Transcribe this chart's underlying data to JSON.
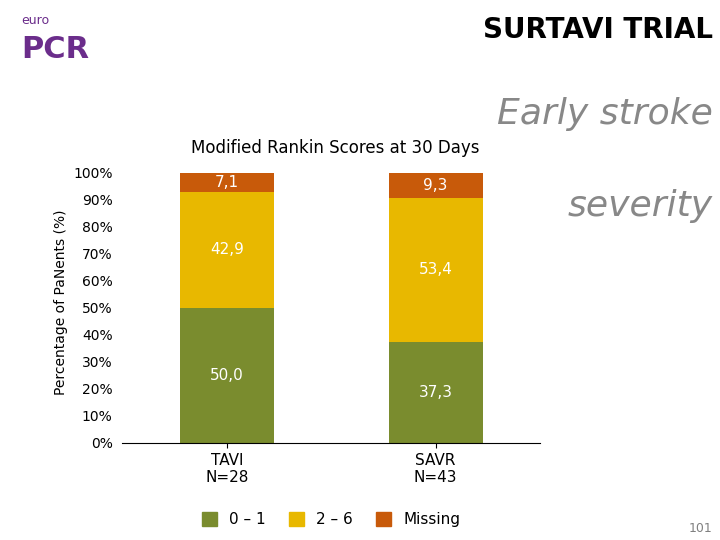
{
  "categories": [
    "TAVI\nN=28",
    "SAVR\nN=43"
  ],
  "bar_0_1": [
    50.0,
    37.3
  ],
  "bar_2_6": [
    42.9,
    53.4
  ],
  "bar_missing": [
    7.1,
    9.3
  ],
  "bar_labels_0_1": [
    "50,0",
    "37,3"
  ],
  "bar_labels_2_6": [
    "42,9",
    "53,4"
  ],
  "bar_labels_missing": [
    "7,1",
    "9,3"
  ],
  "color_0_1": "#7a8c2e",
  "color_2_6": "#e8b800",
  "color_missing": "#c85a0a",
  "title_line1": "SURTAVI TRIAL",
  "title_line2": "Early stroke",
  "title_line3": "severity",
  "subtitle": "Modified Rankin Scores at 30 Days",
  "ylabel": "Percentage of PaNents (%)",
  "yticks": [
    0,
    10,
    20,
    30,
    40,
    50,
    60,
    70,
    80,
    90,
    100
  ],
  "ytick_labels": [
    "0%",
    "10%",
    "20%",
    "30%",
    "40%",
    "50%",
    "60%",
    "70%",
    "80%",
    "90%",
    "100%"
  ],
  "legend_labels": [
    "0 – 1",
    "2 – 6",
    "Missing"
  ],
  "bar_width": 0.45,
  "bg_color": "#ffffff",
  "bar_label_color": "#ffffff",
  "bar_label_fontsize": 11,
  "title1_fontsize": 20,
  "title2_fontsize": 26,
  "title3_fontsize": 26,
  "subtitle_fontsize": 12,
  "ylabel_fontsize": 10,
  "tick_fontsize": 10,
  "legend_fontsize": 11,
  "note_text": "101",
  "euro_text": "euro",
  "pcr_text": "PCR"
}
